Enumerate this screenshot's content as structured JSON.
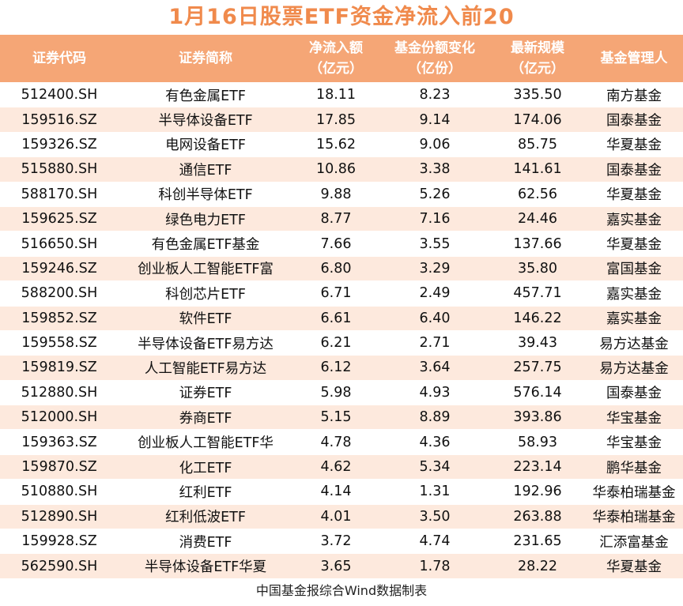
{
  "title": "1月16日股票ETF资金净流入前20",
  "headers": {
    "code": "证券代码",
    "name": "证券简称",
    "inflow_line1": "净流入额",
    "inflow_line2": "（亿元）",
    "share_line1": "基金份额变化",
    "share_line2": "（亿份）",
    "scale_line1": "最新规模",
    "scale_line2": "（亿元）",
    "manager": "基金管理人"
  },
  "rows": [
    {
      "code": "512400.SH",
      "name": "有色金属ETF",
      "inflow": "18.11",
      "share": "8.23",
      "scale": "335.50",
      "manager": "南方基金"
    },
    {
      "code": "159516.SZ",
      "name": "半导体设备ETF",
      "inflow": "17.85",
      "share": "9.14",
      "scale": "174.06",
      "manager": "国泰基金"
    },
    {
      "code": "159326.SZ",
      "name": "电网设备ETF",
      "inflow": "15.62",
      "share": "9.06",
      "scale": "85.75",
      "manager": "华夏基金"
    },
    {
      "code": "515880.SH",
      "name": "通信ETF",
      "inflow": "10.86",
      "share": "3.38",
      "scale": "141.61",
      "manager": "国泰基金"
    },
    {
      "code": "588170.SH",
      "name": "科创半导体ETF",
      "inflow": "9.88",
      "share": "5.26",
      "scale": "62.56",
      "manager": "华夏基金"
    },
    {
      "code": "159625.SZ",
      "name": "绿色电力ETF",
      "inflow": "8.77",
      "share": "7.16",
      "scale": "24.46",
      "manager": "嘉实基金"
    },
    {
      "code": "516650.SH",
      "name": "有色金属ETF基金",
      "inflow": "7.66",
      "share": "3.55",
      "scale": "137.66",
      "manager": "华夏基金"
    },
    {
      "code": "159246.SZ",
      "name": "创业板人工智能ETF富",
      "inflow": "6.80",
      "share": "3.29",
      "scale": "35.80",
      "manager": "富国基金"
    },
    {
      "code": "588200.SH",
      "name": "科创芯片ETF",
      "inflow": "6.71",
      "share": "2.49",
      "scale": "457.71",
      "manager": "嘉实基金"
    },
    {
      "code": "159852.SZ",
      "name": "软件ETF",
      "inflow": "6.61",
      "share": "6.40",
      "scale": "146.22",
      "manager": "嘉实基金"
    },
    {
      "code": "159558.SZ",
      "name": "半导体设备ETF易方达",
      "inflow": "6.21",
      "share": "2.71",
      "scale": "39.43",
      "manager": "易方达基金"
    },
    {
      "code": "159819.SZ",
      "name": "人工智能ETF易方达",
      "inflow": "6.12",
      "share": "3.64",
      "scale": "257.75",
      "manager": "易方达基金"
    },
    {
      "code": "512880.SH",
      "name": "证券ETF",
      "inflow": "5.98",
      "share": "4.93",
      "scale": "576.14",
      "manager": "国泰基金"
    },
    {
      "code": "512000.SH",
      "name": "券商ETF",
      "inflow": "5.15",
      "share": "8.89",
      "scale": "393.86",
      "manager": "华宝基金"
    },
    {
      "code": "159363.SZ",
      "name": "创业板人工智能ETF华",
      "inflow": "4.78",
      "share": "4.36",
      "scale": "58.93",
      "manager": "华宝基金"
    },
    {
      "code": "159870.SZ",
      "name": "化工ETF",
      "inflow": "4.62",
      "share": "5.34",
      "scale": "223.14",
      "manager": "鹏华基金"
    },
    {
      "code": "510880.SH",
      "name": "红利ETF",
      "inflow": "4.14",
      "share": "1.31",
      "scale": "192.96",
      "manager": "华泰柏瑞基金"
    },
    {
      "code": "512890.SH",
      "name": "红利低波ETF",
      "inflow": "4.01",
      "share": "3.50",
      "scale": "263.88",
      "manager": "华泰柏瑞基金"
    },
    {
      "code": "159928.SZ",
      "name": "消费ETF",
      "inflow": "3.72",
      "share": "4.74",
      "scale": "231.65",
      "manager": "汇添富基金"
    },
    {
      "code": "562590.SH",
      "name": "半导体设备ETF华夏",
      "inflow": "3.65",
      "share": "1.78",
      "scale": "28.22",
      "manager": "华夏基金"
    }
  ],
  "footer": "中国基金报综合Wind数据制表"
}
